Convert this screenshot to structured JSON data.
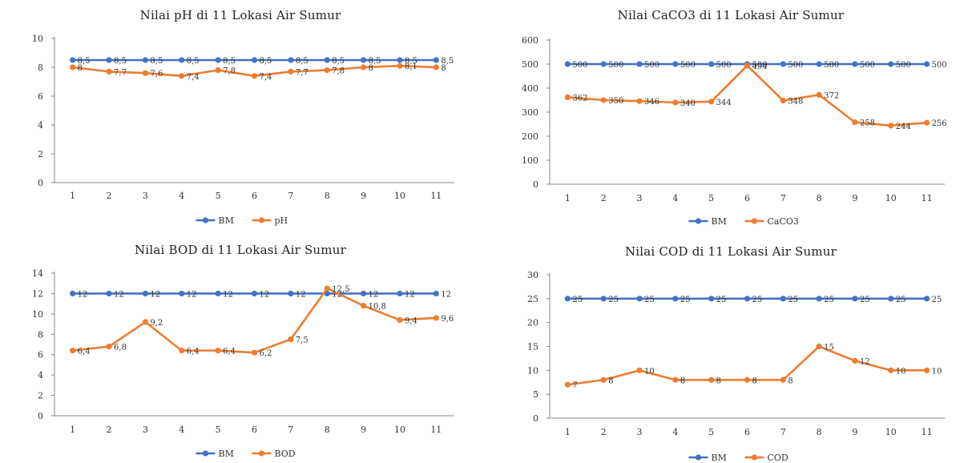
{
  "colors": {
    "bm": "#4472C4",
    "param": "#ED7D31",
    "axis": "#888888"
  },
  "chart_data": [
    {
      "type": "line",
      "title": "Nilai pH di 11 Lokasi Air Sumur",
      "categories": [
        "1",
        "2",
        "3",
        "4",
        "5",
        "6",
        "7",
        "8",
        "9",
        "10",
        "11"
      ],
      "ylim": [
        0,
        10
      ],
      "yticks": [
        0,
        2,
        4,
        6,
        8,
        10
      ],
      "ytick_labels": [
        "0",
        "2",
        "4",
        "6",
        "8",
        "10"
      ],
      "legend_position": "bottom",
      "grid": false,
      "series": [
        {
          "name": "BM",
          "values": [
            8.5,
            8.5,
            8.5,
            8.5,
            8.5,
            8.5,
            8.5,
            8.5,
            8.5,
            8.5,
            8.5
          ],
          "labels": [
            "8,5",
            "8,5",
            "8,5",
            "8,5",
            "8,5",
            "8,5",
            "8,5",
            "8,5",
            "8,5",
            "8,5",
            "8,5"
          ]
        },
        {
          "name": "pH",
          "values": [
            8,
            7.7,
            7.6,
            7.4,
            7.8,
            7.4,
            7.7,
            7.8,
            8,
            8.1,
            8
          ],
          "labels": [
            "8",
            "7,7",
            "7,6",
            "7,4",
            "7,8",
            "7,4",
            "7,7",
            "7,8",
            "8",
            "8,1",
            "8"
          ]
        }
      ]
    },
    {
      "type": "line",
      "title": "Nilai CaCO3 di 11 Lokasi Air Sumur",
      "categories": [
        "1",
        "2",
        "3",
        "4",
        "5",
        "6",
        "7",
        "8",
        "9",
        "10",
        "11"
      ],
      "ylim": [
        0,
        600
      ],
      "yticks": [
        0,
        100,
        200,
        300,
        400,
        500,
        600
      ],
      "ytick_labels": [
        "0",
        "100",
        "200",
        "300",
        "400",
        "500",
        "600"
      ],
      "legend_position": "bottom",
      "grid": false,
      "series": [
        {
          "name": "BM",
          "values": [
            500,
            500,
            500,
            500,
            500,
            500,
            500,
            500,
            500,
            500,
            500
          ],
          "labels": [
            "500",
            "500",
            "500",
            "500",
            "500",
            "500",
            "500",
            "500",
            "500",
            "500",
            "500"
          ]
        },
        {
          "name": "CaCO3",
          "values": [
            362,
            350,
            346,
            340,
            344,
            494,
            348,
            372,
            258,
            244,
            256
          ],
          "labels": [
            "362",
            "350",
            "346",
            "340",
            "344",
            "494",
            "348",
            "372",
            "258",
            "244",
            "256"
          ]
        }
      ]
    },
    {
      "type": "line",
      "title": "Nilai BOD di 11 Lokasi Air Sumur",
      "categories": [
        "1",
        "2",
        "3",
        "4",
        "5",
        "6",
        "7",
        "8",
        "9",
        "10",
        "11"
      ],
      "ylim": [
        0,
        14
      ],
      "yticks": [
        0,
        2,
        4,
        6,
        8,
        10,
        12,
        14
      ],
      "ytick_labels": [
        "0",
        "2",
        "4",
        "6",
        "8",
        "10",
        "12",
        "14"
      ],
      "legend_position": "bottom",
      "grid": false,
      "series": [
        {
          "name": "BM",
          "values": [
            12,
            12,
            12,
            12,
            12,
            12,
            12,
            12,
            12,
            12,
            12
          ],
          "labels": [
            "12",
            "12",
            "12",
            "12",
            "12",
            "12",
            "12",
            "12",
            "12",
            "12",
            "12"
          ]
        },
        {
          "name": "BOD",
          "values": [
            6.4,
            6.8,
            9.2,
            6.4,
            6.4,
            6.2,
            7.5,
            12.5,
            10.8,
            9.4,
            9.6
          ],
          "labels": [
            "6,4",
            "6,8",
            "9,2",
            "6,4",
            "6,4",
            "6,2",
            "7,5",
            "12,5",
            "10,8",
            "9,4",
            "9,6"
          ]
        }
      ]
    },
    {
      "type": "line",
      "title": "Nilai COD  di 11 Lokasi Air Sumur",
      "categories": [
        "1",
        "2",
        "3",
        "4",
        "5",
        "6",
        "7",
        "8",
        "9",
        "10",
        "11"
      ],
      "ylim": [
        0,
        30
      ],
      "yticks": [
        0,
        5,
        10,
        15,
        20,
        25,
        30
      ],
      "ytick_labels": [
        "0",
        "5",
        "10",
        "15",
        "20",
        "25",
        "30"
      ],
      "legend_position": "bottom",
      "grid": false,
      "series": [
        {
          "name": "BM",
          "values": [
            25,
            25,
            25,
            25,
            25,
            25,
            25,
            25,
            25,
            25,
            25
          ],
          "labels": [
            "25",
            "25",
            "25",
            "25",
            "25",
            "25",
            "25",
            "25",
            "25",
            "25",
            "25"
          ]
        },
        {
          "name": "COD",
          "values": [
            7,
            8,
            10,
            8,
            8,
            8,
            8,
            15,
            12,
            10,
            10
          ],
          "labels": [
            "7",
            "8",
            "10",
            "8",
            "8",
            "8",
            "8",
            "15",
            "12",
            "10",
            "10"
          ]
        }
      ]
    }
  ]
}
